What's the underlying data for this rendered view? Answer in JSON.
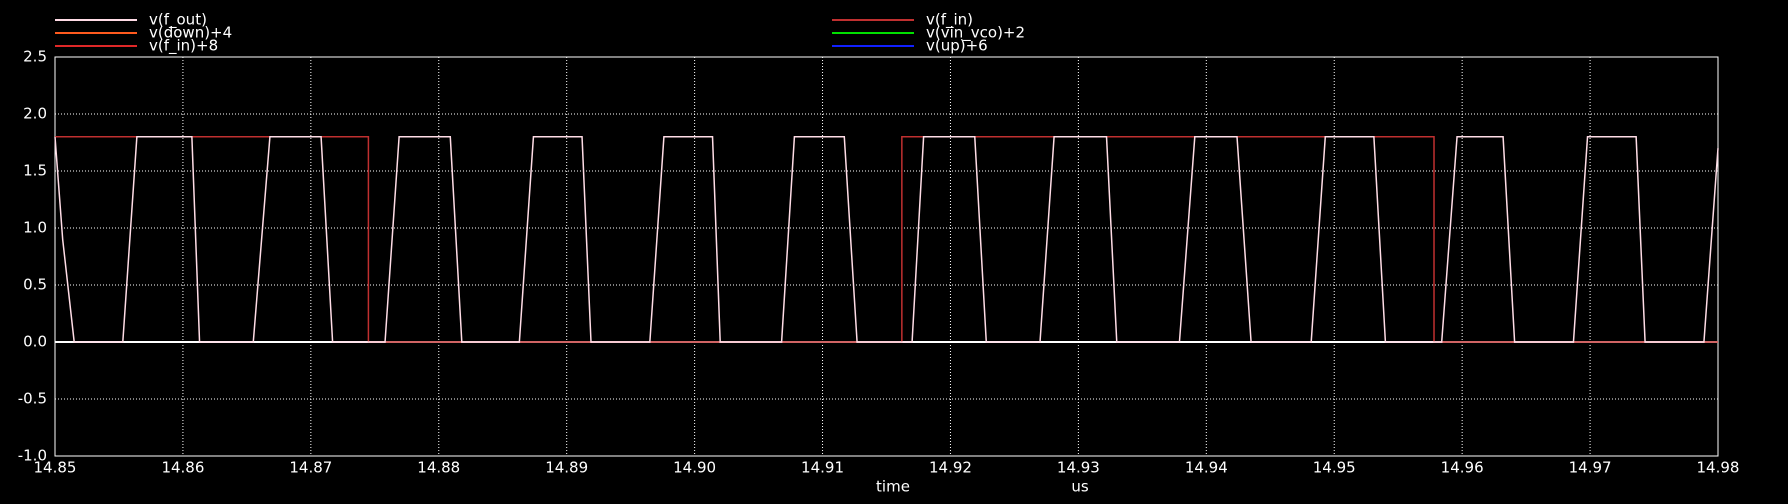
{
  "chart_data": {
    "type": "line",
    "xlabel": "time",
    "xunit": "us",
    "xlim": [
      14.85,
      14.98
    ],
    "xticks": [
      14.85,
      14.86,
      14.87,
      14.88,
      14.89,
      {
        "value": 14.9,
        "label": "14.90"
      },
      14.91,
      14.92,
      14.93,
      14.94,
      14.95,
      14.96,
      14.97,
      14.98
    ],
    "ylim": [
      -1.0,
      2.5
    ],
    "yticks": [
      {
        "value": -1.0,
        "label": "-1.0"
      },
      {
        "value": -0.5,
        "label": "-0.5"
      },
      {
        "value": 0,
        "label": "0.0"
      },
      {
        "value": 0.5,
        "label": "0.5"
      },
      {
        "value": 1.0,
        "label": "1.0"
      },
      {
        "value": 1.5,
        "label": "1.5"
      },
      {
        "value": 2.0,
        "label": "2.0"
      },
      {
        "value": 2.5,
        "label": "2.5"
      }
    ],
    "grid": true,
    "series": [
      {
        "name": "v(f_out)",
        "color": "#ffdce6",
        "x": [
          14.85,
          14.8506,
          14.8515,
          14.8553,
          14.8564,
          14.8607,
          14.8613,
          14.8655,
          14.8668,
          14.8708,
          14.8717,
          14.8758,
          14.8769,
          14.8809,
          14.8818,
          14.8863,
          14.8874,
          14.8912,
          14.8919,
          14.8965,
          14.8976,
          14.9014,
          14.902,
          14.9068,
          14.9078,
          14.9117,
          14.9127,
          14.917,
          14.9179,
          14.9219,
          14.9228,
          14.927,
          14.9281,
          14.9322,
          14.933,
          14.9379,
          14.9391,
          14.9424,
          14.9435,
          14.9482,
          14.9493,
          14.9531,
          14.954,
          14.9584,
          14.9596,
          14.9632,
          14.9641,
          14.9687,
          14.9698,
          14.9736,
          14.9743,
          14.9789,
          14.98
        ],
        "values": [
          1.8,
          0.9,
          0,
          0,
          1.8,
          1.8,
          0,
          0,
          1.8,
          1.8,
          0,
          0,
          1.8,
          1.8,
          0,
          0,
          1.8,
          1.8,
          0,
          0,
          1.8,
          1.8,
          0,
          0,
          1.8,
          1.8,
          0,
          0,
          1.8,
          1.8,
          0,
          0,
          1.8,
          1.8,
          0,
          0,
          1.8,
          1.8,
          0,
          0,
          1.8,
          1.8,
          0,
          0,
          1.8,
          1.8,
          0,
          0,
          1.8,
          1.8,
          0,
          0,
          1.7
        ]
      },
      {
        "name": "v(f_in)",
        "color": "#c03030",
        "x": [
          14.85,
          14.8745,
          14.8745,
          14.9162,
          14.9162,
          14.9578,
          14.9578,
          14.98
        ],
        "values": [
          1.8,
          1.8,
          0,
          0,
          1.8,
          1.8,
          0,
          0
        ]
      },
      {
        "name": "v(down)+4",
        "color": "#ff5a1e"
      },
      {
        "name": "v(vin_vco)+2",
        "color": "#00e000"
      },
      {
        "name": "v(f_in)+8",
        "color": "#e02828"
      },
      {
        "name": "v(up)+6",
        "color": "#1020ff"
      }
    ]
  }
}
